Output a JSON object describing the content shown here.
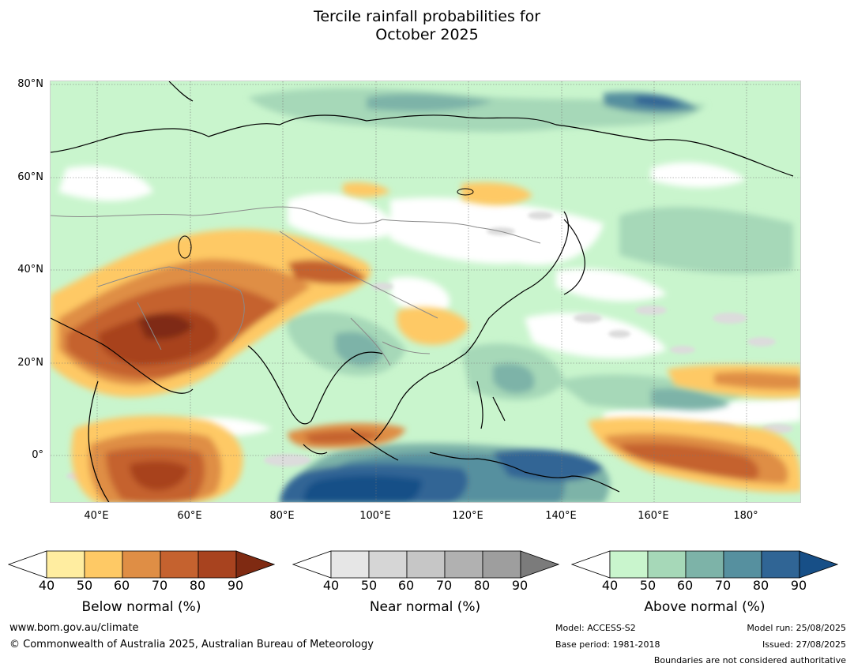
{
  "title_line1": "Tercile rainfall probabilities for",
  "title_line2": "October 2025",
  "lat_labels": [
    "80°N",
    "60°N",
    "40°N",
    "20°N",
    "0°"
  ],
  "lon_labels": [
    "40°E",
    "60°E",
    "80°E",
    "100°E",
    "120°E",
    "140°E",
    "160°E",
    "180°"
  ],
  "colorbars": {
    "below": {
      "title": "Below normal (%)",
      "ticks": [
        "40",
        "50",
        "60",
        "70",
        "80",
        "90"
      ],
      "colors": [
        "#ffffff",
        "#ffeda0",
        "#fec965",
        "#df8e45",
        "#c5622f",
        "#a8431f",
        "#7f2a12"
      ]
    },
    "near": {
      "title": "Near normal (%)",
      "ticks": [
        "40",
        "50",
        "60",
        "70",
        "80",
        "90"
      ],
      "colors": [
        "#ffffff",
        "#e6e6e6",
        "#d6d6d6",
        "#c6c6c6",
        "#b1b1b1",
        "#9e9e9e",
        "#7b7b7b"
      ]
    },
    "above": {
      "title": "Above normal (%)",
      "ticks": [
        "40",
        "50",
        "60",
        "70",
        "80",
        "90"
      ],
      "colors": [
        "#ffffff",
        "#c9f5cd",
        "#a6d8b8",
        "#7db3a8",
        "#56909f",
        "#306595",
        "#174f87"
      ]
    }
  },
  "footer": {
    "website": "www.bom.gov.au/climate",
    "copyright": "© Commonwealth of Australia 2025, Australian Bureau of Meteorology",
    "model": "Model: ACCESS-S2",
    "base_period": "Base period: 1981-2018",
    "model_run": "Model run: 25/08/2025",
    "issued": "Issued: 27/08/2025",
    "disclaimer": "Boundaries are not considered authoritative"
  }
}
